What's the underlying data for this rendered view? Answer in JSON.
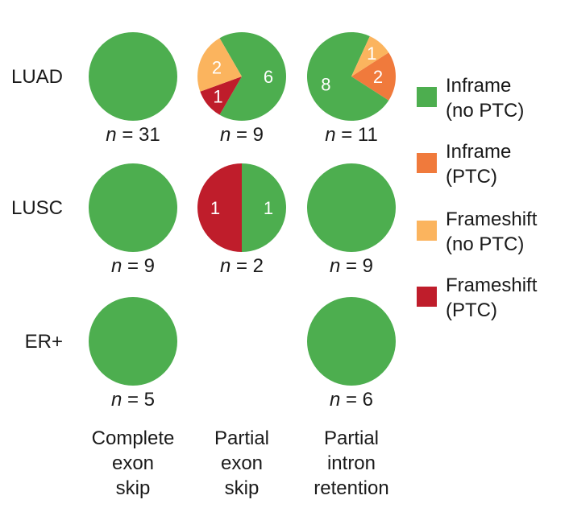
{
  "chart_data": {
    "type": "pie",
    "columns": [
      {
        "id": "complete",
        "label_lines": [
          "Complete",
          "exon",
          "skip"
        ]
      },
      {
        "id": "partial_exon",
        "label_lines": [
          "Partial",
          "exon",
          "skip"
        ]
      },
      {
        "id": "partial_intron",
        "label_lines": [
          "Partial",
          "intron",
          "retention"
        ]
      }
    ],
    "rows": [
      {
        "id": "luad",
        "label": "LUAD"
      },
      {
        "id": "lusc",
        "label": "LUSC"
      },
      {
        "id": "er",
        "label": "ER+"
      }
    ],
    "legend": [
      {
        "key": "inframe_no_ptc",
        "lines": [
          "Inframe",
          "(no PTC)"
        ],
        "color": "#4dae4f"
      },
      {
        "key": "inframe_ptc",
        "lines": [
          "Inframe",
          "(PTC)"
        ],
        "color": "#f07a3c"
      },
      {
        "key": "frameshift_no_ptc",
        "lines": [
          "Frameshift",
          "(no PTC)"
        ],
        "color": "#fbb45e"
      },
      {
        "key": "frameshift_ptc",
        "lines": [
          "Frameshift",
          "(PTC)"
        ],
        "color": "#bf1d2b"
      }
    ],
    "legend_position": "right",
    "pies": [
      {
        "row": "luad",
        "col": "complete",
        "n_label": "n = 31",
        "show_values": false,
        "slices": [
          {
            "key": "inframe_no_ptc",
            "value": 31
          }
        ]
      },
      {
        "row": "luad",
        "col": "partial_exon",
        "n_label": "n = 9",
        "show_values": true,
        "slices": [
          {
            "key": "inframe_no_ptc",
            "value": 6
          },
          {
            "key": "frameshift_ptc",
            "value": 1
          },
          {
            "key": "frameshift_no_ptc",
            "value": 2
          }
        ]
      },
      {
        "row": "luad",
        "col": "partial_intron",
        "n_label": "n = 11",
        "show_values": true,
        "slices": [
          {
            "key": "inframe_ptc",
            "value": 2
          },
          {
            "key": "inframe_no_ptc",
            "value": 8
          },
          {
            "key": "frameshift_no_ptc",
            "value": 1
          }
        ]
      },
      {
        "row": "lusc",
        "col": "complete",
        "n_label": "n = 9",
        "show_values": false,
        "slices": [
          {
            "key": "inframe_no_ptc",
            "value": 9
          }
        ]
      },
      {
        "row": "lusc",
        "col": "partial_exon",
        "n_label": "n = 2",
        "show_values": true,
        "slices": [
          {
            "key": "inframe_no_ptc",
            "value": 1
          },
          {
            "key": "frameshift_ptc",
            "value": 1
          }
        ]
      },
      {
        "row": "lusc",
        "col": "partial_intron",
        "n_label": "n = 9",
        "show_values": false,
        "slices": [
          {
            "key": "inframe_no_ptc",
            "value": 9
          }
        ]
      },
      {
        "row": "er",
        "col": "complete",
        "n_label": "n = 5",
        "show_values": false,
        "slices": [
          {
            "key": "inframe_no_ptc",
            "value": 5
          }
        ]
      },
      {
        "row": "er",
        "col": "partial_intron",
        "n_label": "n = 6",
        "show_values": false,
        "slices": [
          {
            "key": "inframe_no_ptc",
            "value": 6
          }
        ]
      }
    ]
  }
}
